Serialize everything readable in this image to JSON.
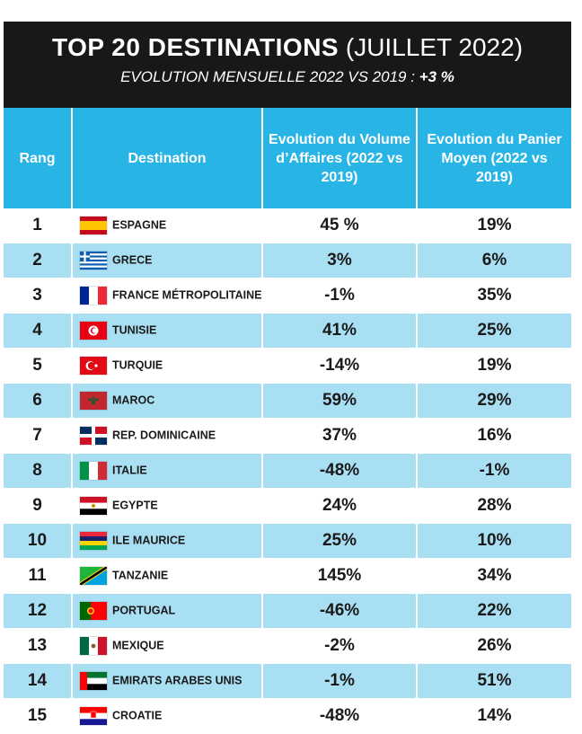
{
  "header": {
    "title_strong": "TOP 20 DESTINATIONS",
    "title_rest": "(JUILLET 2022)",
    "subtitle": "EVOLUTION MENSUELLE 2022 VS 2019 :",
    "subtitle_value": "+3 %"
  },
  "columns": {
    "rank": "Rang",
    "destination": "Destination",
    "volume": "Evolution du Volume d’Affaires (2022 vs 2019)",
    "panier": "Evolution du Panier Moyen (2022 vs 2019)"
  },
  "chart_data": {
    "type": "table",
    "columns": [
      "Rang",
      "Destination",
      "Evolution du Volume d’Affaires (2022 vs 2019)",
      "Evolution du Panier Moyen (2022 vs 2019)"
    ],
    "rows": [
      {
        "rank": "1",
        "flag": "spain-flag-icon",
        "destination": "ESPAGNE",
        "volume": "45 %",
        "panier": "19%"
      },
      {
        "rank": "2",
        "flag": "greece-flag-icon",
        "destination": "GRECE",
        "volume": "3%",
        "panier": "6%"
      },
      {
        "rank": "3",
        "flag": "france-flag-icon",
        "destination": "FRANCE MÉTROPOLITAINE",
        "volume": "-1%",
        "panier": "35%"
      },
      {
        "rank": "4",
        "flag": "tunisia-flag-icon",
        "destination": "TUNISIE",
        "volume": "41%",
        "panier": "25%"
      },
      {
        "rank": "5",
        "flag": "turkey-flag-icon",
        "destination": "TURQUIE",
        "volume": "-14%",
        "panier": "19%"
      },
      {
        "rank": "6",
        "flag": "morocco-flag-icon",
        "destination": "MAROC",
        "volume": "59%",
        "panier": "29%"
      },
      {
        "rank": "7",
        "flag": "dominican-republic-flag-icon",
        "destination": "REP. DOMINICAINE",
        "volume": "37%",
        "panier": "16%"
      },
      {
        "rank": "8",
        "flag": "italy-flag-icon",
        "destination": "ITALIE",
        "volume": "-48%",
        "panier": "-1%"
      },
      {
        "rank": "9",
        "flag": "egypt-flag-icon",
        "destination": "EGYPTE",
        "volume": "24%",
        "panier": "28%"
      },
      {
        "rank": "10",
        "flag": "mauritius-flag-icon",
        "destination": "ILE MAURICE",
        "volume": "25%",
        "panier": "10%"
      },
      {
        "rank": "11",
        "flag": "tanzania-flag-icon",
        "destination": "TANZANIE",
        "volume": "145%",
        "panier": "34%"
      },
      {
        "rank": "12",
        "flag": "portugal-flag-icon",
        "destination": "PORTUGAL",
        "volume": "-46%",
        "panier": "22%"
      },
      {
        "rank": "13",
        "flag": "mexico-flag-icon",
        "destination": "MEXIQUE",
        "volume": "-2%",
        "panier": "26%"
      },
      {
        "rank": "14",
        "flag": "uae-flag-icon",
        "destination": "EMIRATS ARABES UNIS",
        "volume": "-1%",
        "panier": "51%"
      },
      {
        "rank": "15",
        "flag": "croatia-flag-icon",
        "destination": "CROATIE",
        "volume": "-48%",
        "panier": "14%"
      }
    ]
  },
  "colors": {
    "header_bg": "#29b4e6",
    "row_alt_bg": "#a9dff2",
    "title_bg": "#181818"
  }
}
